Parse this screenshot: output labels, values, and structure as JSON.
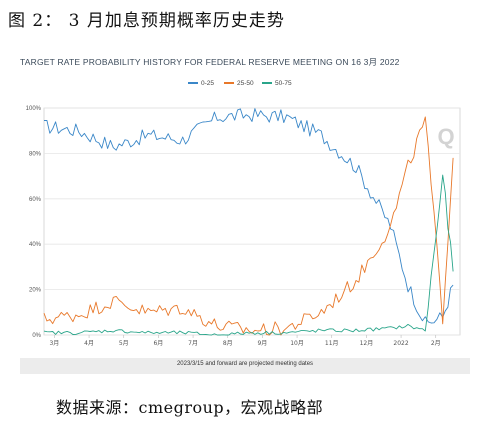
{
  "figure": {
    "caption": "图 2：  3 月加息预期概率历史走势",
    "source": "数据来源：cmegroup，宏观战略部"
  },
  "chart_data": {
    "type": "line",
    "title": "TARGET RATE PROBABILITY HISTORY FOR FEDERAL RESERVE MEETING ON 16 3月 2022",
    "footnote": "2023/3/15 and forward are projected meeting dates",
    "watermark": "Q",
    "y_ticks": [
      "0%",
      "20%",
      "40%",
      "60%",
      "80%",
      "100%"
    ],
    "ylim": [
      0,
      100
    ],
    "x_ticks": [
      "3月",
      "4月",
      "5月",
      "6月",
      "7月",
      "8月",
      "9月",
      "10月",
      "11月",
      "12月",
      "2022",
      "2月"
    ],
    "x": [
      0,
      1,
      2,
      3,
      4,
      5,
      6,
      7,
      8,
      9,
      10,
      10.5,
      11,
      11.5,
      11.8
    ],
    "series": [
      {
        "name": "0-25",
        "color": "#3a87c8",
        "values": [
          92,
          90,
          83,
          88,
          86,
          96,
          97,
          96,
          88,
          74,
          48,
          22,
          5,
          8,
          22
        ]
      },
      {
        "name": "25-50",
        "color": "#e8782a",
        "values": [
          7,
          9,
          15,
          10,
          12,
          4,
          2,
          3,
          10,
          24,
          48,
          74,
          95,
          8,
          78
        ]
      },
      {
        "name": "50-75",
        "color": "#2aa58a",
        "values": [
          1,
          1,
          2,
          1,
          1,
          0,
          1,
          1,
          2,
          2,
          3,
          4,
          2,
          70,
          28
        ]
      }
    ],
    "legend_position": "top-center",
    "grid": true
  }
}
